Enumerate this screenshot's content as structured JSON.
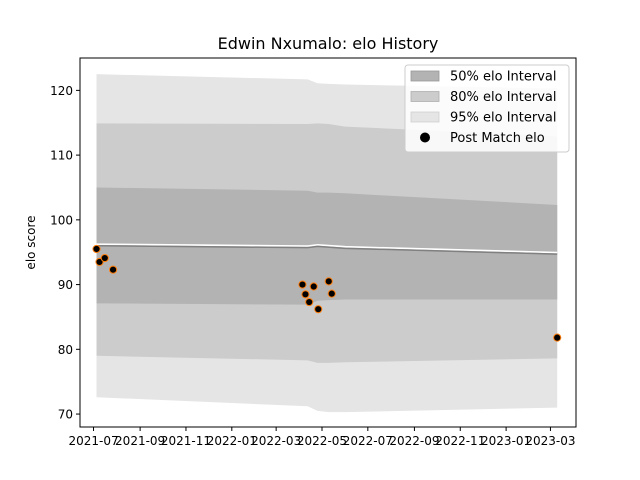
{
  "chart_data": {
    "type": "scatter",
    "title": "Edwin Nxumalo: elo History",
    "xlabel": "",
    "ylabel": "elo score",
    "xlim": [
      "2021-06-13",
      "2023-04-04"
    ],
    "ylim": [
      68,
      125
    ],
    "x_ticks": [
      "2021-07",
      "2021-09",
      "2021-11",
      "2022-01",
      "2022-03",
      "2022-05",
      "2022-07",
      "2022-09",
      "2022-11",
      "2023-01",
      "2023-03"
    ],
    "y_ticks": [
      70,
      80,
      90,
      100,
      110,
      120
    ],
    "grid": false,
    "legend": {
      "position": "top-right",
      "entries": [
        "50% elo Interval",
        "80% elo Interval",
        "95% elo Interval",
        "Post Match elo"
      ]
    },
    "colors": {
      "band50": "#b3b3b3",
      "band80": "#cccccc",
      "band95": "#e5e5e5",
      "mean_line": "#808080",
      "marker_face": "#000000",
      "marker_edge": "#ff7f0e"
    },
    "series": [
      {
        "name": "95% elo Interval",
        "type": "band",
        "x": [
          "2021-07-05",
          "2022-04-12",
          "2022-04-25",
          "2022-05-10",
          "2022-06-01",
          "2023-03-10"
        ],
        "lower": [
          72.6,
          71.2,
          70.5,
          70.3,
          70.3,
          71.0
        ],
        "upper": [
          122.5,
          121.7,
          121.1,
          121.0,
          120.9,
          120.3
        ]
      },
      {
        "name": "80% elo Interval",
        "type": "band",
        "x": [
          "2021-07-05",
          "2022-04-12",
          "2022-04-25",
          "2022-05-10",
          "2022-06-01",
          "2023-03-10"
        ],
        "lower": [
          79.0,
          78.3,
          77.9,
          77.9,
          78.0,
          78.6
        ],
        "upper": [
          114.9,
          114.8,
          114.9,
          114.8,
          114.4,
          112.9
        ]
      },
      {
        "name": "50% elo Interval",
        "type": "band",
        "x": [
          "2021-07-05",
          "2022-04-12",
          "2022-04-25",
          "2022-05-10",
          "2022-06-01",
          "2023-03-10"
        ],
        "lower": [
          87.1,
          86.9,
          87.5,
          87.6,
          87.7,
          87.7
        ],
        "upper": [
          105.0,
          104.5,
          104.2,
          104.2,
          104.1,
          102.3
        ]
      },
      {
        "name": "",
        "type": "line",
        "x": [
          "2021-07-05",
          "2022-04-12",
          "2022-04-25",
          "2022-06-01",
          "2023-03-10"
        ],
        "y": [
          96.0,
          95.7,
          95.9,
          95.6,
          94.7
        ]
      },
      {
        "name": "Post Match elo",
        "type": "scatter",
        "x": [
          "2021-07-05",
          "2021-07-09",
          "2021-07-16",
          "2021-07-27",
          "2022-04-05",
          "2022-04-09",
          "2022-04-14",
          "2022-04-20",
          "2022-04-26",
          "2022-05-10",
          "2022-05-14",
          "2023-03-10"
        ],
        "y": [
          95.5,
          93.5,
          94.1,
          92.3,
          90.0,
          88.5,
          87.3,
          89.7,
          86.2,
          90.5,
          88.6,
          81.8
        ]
      }
    ]
  }
}
